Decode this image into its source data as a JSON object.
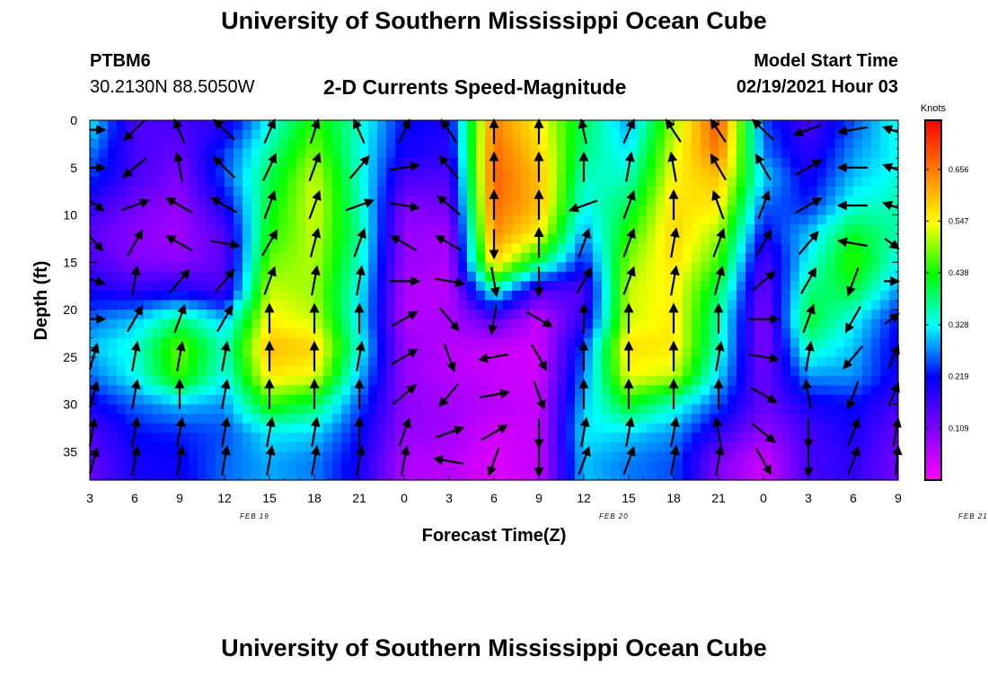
{
  "header": {
    "title": "University of Southern Mississippi Ocean Cube",
    "station_id": "PTBM6",
    "station_coords": "30.2130N 88.5050W",
    "plot_title": "2-D Currents Speed-Magnitude",
    "model_label": "Model Start Time",
    "model_start": "02/19/2021 Hour 03"
  },
  "footer": {
    "title": "University of Southern Mississippi Ocean Cube"
  },
  "chart_data": {
    "type": "heatmap",
    "title": "2-D Currents Speed-Magnitude",
    "xlabel": "Forecast Time(Z)",
    "ylabel": "Depth (ft)",
    "x_tick_labels": [
      "3",
      "6",
      "9",
      "12",
      "15",
      "18",
      "21",
      "0",
      "3",
      "6",
      "9",
      "12",
      "15",
      "18",
      "21",
      "0",
      "3",
      "6",
      "9"
    ],
    "date_labels": [
      {
        "label": "FEB 19",
        "at_hour": 14
      },
      {
        "label": "FEB 20",
        "at_hour": 38
      },
      {
        "label": "FEB 21",
        "at_hour": 62
      }
    ],
    "xlim_hours": [
      3,
      57
    ],
    "y_ticks": [
      0,
      5,
      10,
      15,
      20,
      25,
      30,
      35
    ],
    "ylim": [
      0,
      38
    ],
    "y_inverted": true,
    "colorbar": {
      "unit": "Knots",
      "range": [
        0.0,
        0.76
      ],
      "tick_values": [
        0.109,
        0.219,
        0.328,
        0.438,
        0.547,
        0.656
      ],
      "tick_labels": [
        "0.109",
        "0.219",
        "0.328",
        "0.438",
        "0.547",
        "0.656"
      ],
      "colors": [
        "#ff00ff",
        "#8000ff",
        "#0000ff",
        "#00ffff",
        "#00ff00",
        "#ffff00",
        "#ff8000",
        "#ff0000"
      ]
    },
    "grid": false,
    "depths_ft": [
      0,
      3.5,
      6,
      9,
      12,
      15,
      18,
      21,
      24,
      27,
      30,
      33,
      36
    ],
    "times_hours": [
      3,
      6,
      9,
      12,
      15,
      18,
      21,
      24,
      27,
      30,
      33,
      36,
      39,
      42,
      45,
      48,
      51,
      54,
      57
    ],
    "speed_knots": [
      [
        0.33,
        0.15,
        0.16,
        0.18,
        0.33,
        0.45,
        0.35,
        0.22,
        0.2,
        0.65,
        0.55,
        0.4,
        0.28,
        0.5,
        0.7,
        0.25,
        0.15,
        0.25,
        0.34
      ],
      [
        0.27,
        0.16,
        0.13,
        0.24,
        0.37,
        0.49,
        0.34,
        0.2,
        0.18,
        0.67,
        0.58,
        0.38,
        0.32,
        0.53,
        0.66,
        0.27,
        0.18,
        0.28,
        0.33
      ],
      [
        0.24,
        0.16,
        0.11,
        0.25,
        0.4,
        0.52,
        0.35,
        0.16,
        0.15,
        0.68,
        0.6,
        0.35,
        0.35,
        0.55,
        0.6,
        0.31,
        0.2,
        0.3,
        0.34
      ],
      [
        0.18,
        0.12,
        0.09,
        0.2,
        0.42,
        0.53,
        0.36,
        0.11,
        0.12,
        0.67,
        0.6,
        0.33,
        0.4,
        0.57,
        0.56,
        0.26,
        0.23,
        0.34,
        0.36
      ],
      [
        0.14,
        0.1,
        0.08,
        0.15,
        0.44,
        0.52,
        0.37,
        0.09,
        0.08,
        0.64,
        0.55,
        0.28,
        0.45,
        0.58,
        0.5,
        0.21,
        0.3,
        0.42,
        0.36
      ],
      [
        0.16,
        0.11,
        0.1,
        0.14,
        0.48,
        0.51,
        0.35,
        0.09,
        0.07,
        0.58,
        0.4,
        0.22,
        0.49,
        0.57,
        0.46,
        0.15,
        0.33,
        0.46,
        0.33
      ],
      [
        0.2,
        0.18,
        0.2,
        0.16,
        0.52,
        0.5,
        0.33,
        0.07,
        0.06,
        0.35,
        0.15,
        0.15,
        0.52,
        0.55,
        0.4,
        0.12,
        0.38,
        0.41,
        0.28
      ],
      [
        0.26,
        0.3,
        0.38,
        0.3,
        0.55,
        0.52,
        0.32,
        0.07,
        0.07,
        0.15,
        0.05,
        0.18,
        0.52,
        0.56,
        0.36,
        0.1,
        0.42,
        0.33,
        0.22
      ],
      [
        0.3,
        0.34,
        0.48,
        0.35,
        0.6,
        0.58,
        0.34,
        0.09,
        0.06,
        0.05,
        0.04,
        0.25,
        0.57,
        0.56,
        0.35,
        0.1,
        0.36,
        0.3,
        0.2
      ],
      [
        0.26,
        0.33,
        0.46,
        0.33,
        0.56,
        0.54,
        0.3,
        0.09,
        0.06,
        0.05,
        0.04,
        0.27,
        0.54,
        0.52,
        0.31,
        0.12,
        0.28,
        0.28,
        0.2
      ],
      [
        0.2,
        0.26,
        0.3,
        0.28,
        0.45,
        0.4,
        0.25,
        0.1,
        0.08,
        0.06,
        0.05,
        0.3,
        0.43,
        0.35,
        0.25,
        0.13,
        0.2,
        0.22,
        0.16
      ],
      [
        0.15,
        0.22,
        0.23,
        0.25,
        0.32,
        0.31,
        0.22,
        0.09,
        0.08,
        0.04,
        0.05,
        0.32,
        0.31,
        0.28,
        0.18,
        0.09,
        0.16,
        0.2,
        0.13
      ],
      [
        0.13,
        0.2,
        0.21,
        0.26,
        0.29,
        0.27,
        0.2,
        0.07,
        0.06,
        0.03,
        0.05,
        0.3,
        0.27,
        0.25,
        0.11,
        0.04,
        0.16,
        0.18,
        0.12
      ]
    ],
    "vector_depths_ft": [
      1,
      5,
      9,
      13,
      17,
      21,
      25,
      29,
      33,
      36
    ],
    "vector_times_hours": [
      3,
      6,
      9,
      12,
      15,
      18,
      21,
      24,
      27,
      30,
      33,
      36,
      39,
      42,
      45,
      48,
      51,
      54,
      57
    ],
    "vector_direction_deg": [
      [
        90,
        225,
        340,
        315,
        20,
        15,
        340,
        20,
        330,
        0,
        0,
        350,
        20,
        330,
        330,
        315,
        250,
        260,
        280
      ],
      [
        90,
        230,
        350,
        315,
        25,
        20,
        40,
        80,
        320,
        0,
        0,
        0,
        10,
        350,
        330,
        330,
        60,
        270,
        280
      ],
      [
        110,
        70,
        300,
        300,
        20,
        20,
        70,
        100,
        310,
        0,
        0,
        250,
        20,
        0,
        340,
        20,
        60,
        270,
        280
      ],
      [
        120,
        30,
        300,
        100,
        30,
        15,
        20,
        300,
        300,
        180,
        0,
        20,
        20,
        10,
        20,
        30,
        40,
        280,
        110
      ],
      [
        100,
        10,
        40,
        40,
        20,
        10,
        10,
        90,
        100,
        170,
        180,
        30,
        20,
        10,
        15,
        50,
        30,
        200,
        90
      ],
      [
        90,
        30,
        20,
        30,
        0,
        0,
        0,
        60,
        140,
        190,
        120,
        0,
        0,
        0,
        0,
        90,
        20,
        210,
        70
      ],
      [
        30,
        10,
        10,
        10,
        0,
        0,
        10,
        60,
        160,
        260,
        150,
        0,
        0,
        0,
        10,
        100,
        10,
        220,
        40
      ],
      [
        30,
        10,
        0,
        10,
        0,
        0,
        0,
        50,
        220,
        80,
        160,
        0,
        0,
        0,
        0,
        120,
        350,
        200,
        40
      ],
      [
        20,
        10,
        10,
        10,
        10,
        10,
        0,
        20,
        70,
        60,
        180,
        10,
        10,
        10,
        350,
        130,
        180,
        20,
        20
      ],
      [
        30,
        10,
        10,
        10,
        10,
        10,
        10,
        10,
        280,
        200,
        180,
        20,
        20,
        10,
        10,
        150,
        180,
        20,
        10
      ]
    ]
  }
}
